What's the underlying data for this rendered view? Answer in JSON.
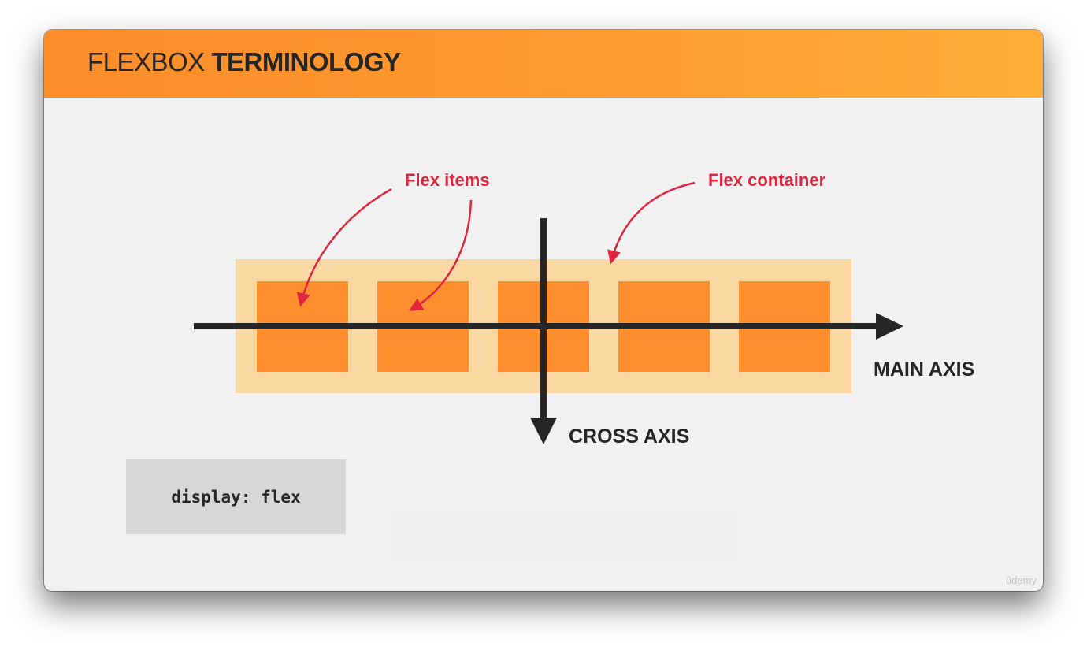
{
  "slide": {
    "title_light": "FLEXBOX ",
    "title_bold": "TERMINOLOGY"
  },
  "diagram": {
    "flex_items_label": "Flex items",
    "flex_container_label": "Flex container",
    "main_axis_label": "MAIN AXIS",
    "cross_axis_label": "CROSS AXIS",
    "item_count": 5
  },
  "code": {
    "text": "display: flex"
  },
  "watermark": "ûdemy",
  "colors": {
    "header_start": "#fd8c2a",
    "header_end": "#feae37",
    "container": "#fbd7a2",
    "item": "#ff8e2e",
    "annotation": "#e0263e",
    "axis": "#262626",
    "background": "#f1f1f1"
  }
}
